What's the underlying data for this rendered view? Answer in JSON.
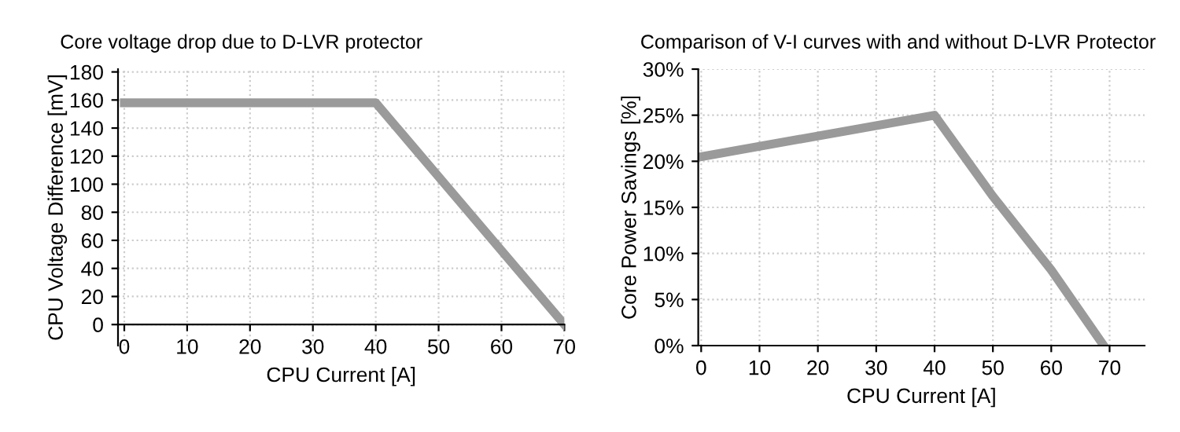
{
  "chart_data": [
    {
      "type": "line",
      "title": "Core voltage drop due to D-LVR protector",
      "xlabel": "CPU Current [A]",
      "ylabel": "CPU Voltage Difference [mV]",
      "x": [
        0,
        40,
        70
      ],
      "series": [
        {
          "color": "#9a9a9a",
          "values": [
            158,
            158,
            0
          ]
        }
      ],
      "xlim": [
        -1,
        70
      ],
      "xticks": [
        0,
        10,
        20,
        30,
        40,
        50,
        60,
        70
      ],
      "ylim": [
        -15,
        182
      ],
      "yticks": [
        0,
        20,
        40,
        60,
        80,
        100,
        120,
        140,
        160,
        180
      ],
      "grid": true,
      "line_style": "solid",
      "marker": "none"
    },
    {
      "type": "line",
      "title": "Comparison of V-I curves with and without D-LVR Protector",
      "xlabel": "CPU Current [A]",
      "ylabel": "Core Power Savings [%]",
      "x": [
        0,
        40,
        50,
        60,
        69
      ],
      "series": [
        {
          "color": "#9a9a9a",
          "values": [
            20.5,
            25,
            16.2,
            8.2,
            0
          ]
        }
      ],
      "xlim": [
        -0.5,
        76
      ],
      "xticks": [
        0,
        10,
        20,
        30,
        40,
        50,
        60,
        70
      ],
      "ylim": [
        0,
        30
      ],
      "yticks": [
        {
          "value": 0,
          "label": "0%"
        },
        {
          "value": 5,
          "label": "5%"
        },
        {
          "value": 10,
          "label": "10%"
        },
        {
          "value": 15,
          "label": "15%"
        },
        {
          "value": 20,
          "label": "20%"
        },
        {
          "value": 25,
          "label": "25%"
        },
        {
          "value": 30,
          "label": "30%"
        }
      ],
      "grid": true,
      "line_style": "solid",
      "marker": "none"
    }
  ]
}
